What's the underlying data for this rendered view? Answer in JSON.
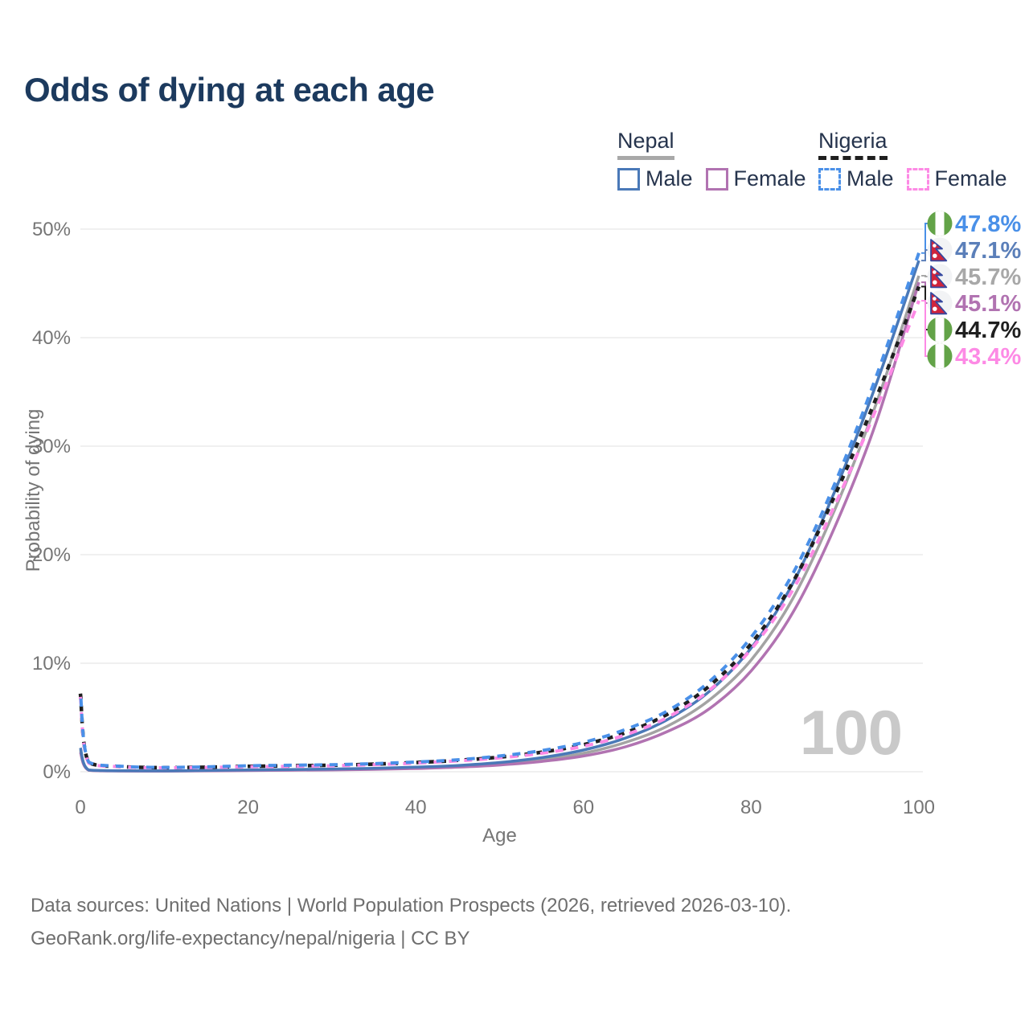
{
  "title": "Odds of dying at each age",
  "legend": {
    "nepal": {
      "label": "Nepal",
      "male": "Male",
      "female": "Female"
    },
    "nigeria": {
      "label": "Nigeria",
      "male": "Male",
      "female": "Female"
    }
  },
  "watermark": "100",
  "footer": {
    "line1": "Data sources: United Nations | World Population Prospects (2026, retrieved 2026-03-10).",
    "line2": "GeoRank.org/life-expectancy/nepal/nigeria | CC BY"
  },
  "colors": {
    "title_text": "#1c3a5e",
    "legend_text": "#26344d",
    "axis_text": "#757575",
    "gridline": "#ececec",
    "watermark": "#c9c9c9",
    "nepal_underline": "#a8a8a8",
    "nigeria_underline": "#1f1f1f",
    "nepal_male": "#4a79b8",
    "nepal_female": "#b173b1",
    "nepal_total": "#a3a3a3",
    "nigeria_male": "#4a90e8",
    "nigeria_female": "#fd8ae5",
    "nigeria_total": "#1f1f1f",
    "flag_nigeria_green": "#63a348",
    "flag_nepal_crimson": "#d0243c",
    "flag_nepal_blue": "#3448a0"
  },
  "chart_data": {
    "type": "line",
    "title": "Odds of dying at each age",
    "xlabel": "Age",
    "ylabel": "Probability of dying",
    "xlim": [
      0,
      100
    ],
    "ylim": [
      0,
      50
    ],
    "x_ticks": [
      0,
      20,
      40,
      60,
      80,
      100
    ],
    "y_ticks": [
      0,
      10,
      20,
      30,
      40,
      50
    ],
    "y_tick_suffix": "%",
    "grid": "horizontal",
    "legend_position": "top-right",
    "x": [
      0,
      1,
      5,
      10,
      15,
      20,
      25,
      30,
      35,
      40,
      45,
      50,
      55,
      60,
      65,
      70,
      75,
      80,
      85,
      90,
      95,
      100
    ],
    "series": [
      {
        "name": "Nepal Total",
        "country": "Nepal",
        "sex": "total",
        "style": "solid",
        "color": "#a3a3a3",
        "width": 3.5,
        "dash": null,
        "values": [
          2.0,
          0.15,
          0.08,
          0.07,
          0.1,
          0.14,
          0.17,
          0.21,
          0.27,
          0.36,
          0.5,
          0.73,
          1.1,
          1.7,
          2.7,
          4.2,
          6.6,
          10.3,
          16.0,
          24.2,
          34.1,
          45.7
        ]
      },
      {
        "name": "Nepal Female",
        "country": "Nepal",
        "sex": "female",
        "style": "solid",
        "color": "#b173b1",
        "width": 3.5,
        "dash": null,
        "values": [
          1.8,
          0.14,
          0.07,
          0.06,
          0.08,
          0.11,
          0.14,
          0.17,
          0.22,
          0.3,
          0.42,
          0.62,
          0.95,
          1.45,
          2.3,
          3.7,
          5.8,
          9.3,
          14.7,
          22.6,
          32.4,
          45.1
        ]
      },
      {
        "name": "Nepal Male",
        "country": "Nepal",
        "sex": "male",
        "style": "solid",
        "color": "#4a79b8",
        "width": 3.5,
        "dash": null,
        "values": [
          2.2,
          0.16,
          0.09,
          0.08,
          0.12,
          0.17,
          0.21,
          0.25,
          0.32,
          0.42,
          0.58,
          0.85,
          1.3,
          2.0,
          3.1,
          4.8,
          7.4,
          11.4,
          17.4,
          25.9,
          35.9,
          47.1
        ]
      },
      {
        "name": "Nigeria Total",
        "country": "Nigeria",
        "sex": "total",
        "style": "dashed",
        "color": "#1f1f1f",
        "width": 4.5,
        "dash": "7 8",
        "dashoffset": 0,
        "values": [
          7.2,
          0.85,
          0.47,
          0.38,
          0.42,
          0.5,
          0.55,
          0.6,
          0.7,
          0.85,
          1.05,
          1.35,
          1.8,
          2.5,
          3.6,
          5.3,
          7.9,
          11.8,
          17.5,
          25.5,
          34.6,
          44.7
        ]
      },
      {
        "name": "Nigeria Female",
        "country": "Nigeria",
        "sex": "female",
        "style": "dashed",
        "color": "#fd8ae5",
        "width": 4,
        "dash": "10 9",
        "dashoffset": 0,
        "values": [
          6.9,
          0.8,
          0.45,
          0.36,
          0.4,
          0.46,
          0.5,
          0.55,
          0.65,
          0.8,
          1.0,
          1.28,
          1.7,
          2.35,
          3.4,
          5.0,
          7.5,
          11.3,
          16.8,
          24.6,
          33.6,
          43.4
        ]
      },
      {
        "name": "Nigeria Male",
        "country": "Nigeria",
        "sex": "male",
        "style": "dashed",
        "color": "#4a90e8",
        "width": 4,
        "dash": "10 9",
        "dashoffset": 10,
        "values": [
          7.4,
          0.9,
          0.5,
          0.4,
          0.45,
          0.55,
          0.6,
          0.65,
          0.75,
          0.9,
          1.1,
          1.45,
          1.95,
          2.7,
          3.9,
          5.6,
          8.3,
          12.4,
          18.3,
          26.6,
          36.6,
          47.8
        ]
      }
    ],
    "end_labels": [
      {
        "label": "47.8%",
        "value": 47.8,
        "series": "Nigeria Male",
        "flag": "nigeria",
        "color": "#4a90e8"
      },
      {
        "label": "47.1%",
        "value": 47.1,
        "series": "Nepal Male",
        "flag": "nepal",
        "color": "#5b7fb9"
      },
      {
        "label": "45.7%",
        "value": 45.7,
        "series": "Nepal Total",
        "flag": "nepal",
        "color": "#a8a8a8"
      },
      {
        "label": "45.1%",
        "value": 45.1,
        "series": "Nepal Female",
        "flag": "nepal",
        "color": "#b173b1"
      },
      {
        "label": "44.7%",
        "value": 44.7,
        "series": "Nigeria Total",
        "flag": "nigeria",
        "color": "#1f1f1f"
      },
      {
        "label": "43.4%",
        "value": 43.4,
        "series": "Nigeria Female",
        "flag": "nigeria",
        "color": "#fd8ae5"
      }
    ]
  }
}
